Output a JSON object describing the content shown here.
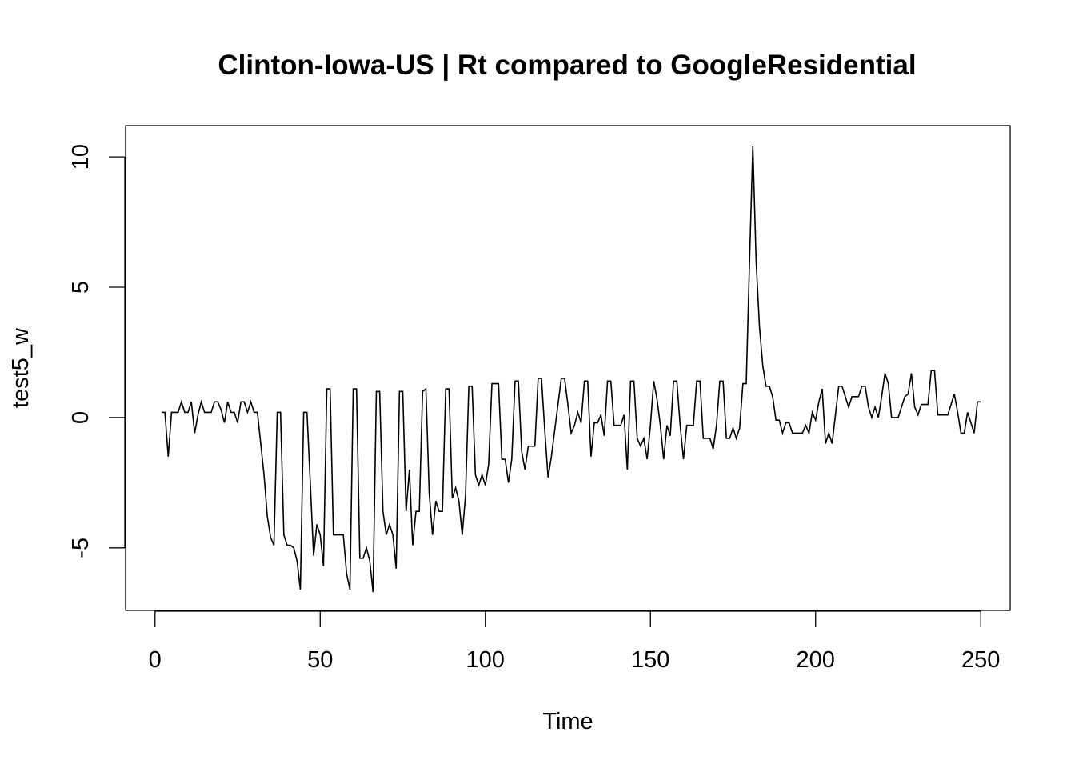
{
  "chart_data": {
    "type": "line",
    "title": "Clinton-Iowa-US | Rt compared to GoogleResidential",
    "xlabel": "Time",
    "ylabel": "test5_w",
    "xlim": [
      -8.9,
      258.9
    ],
    "ylim": [
      -7.4,
      11.2
    ],
    "x_ticks": [
      0,
      50,
      100,
      150,
      200,
      250
    ],
    "y_ticks": [
      -5,
      0,
      5,
      10
    ],
    "grid": false,
    "legend": "none",
    "line_color": "#000000",
    "series": [
      {
        "start_x": 2,
        "values": [
          0.2,
          0.2,
          -1.5,
          0.2,
          0.2,
          0.2,
          0.6,
          0.2,
          0.2,
          0.6,
          -0.6,
          0.1,
          0.6,
          0.2,
          0.2,
          0.2,
          0.6,
          0.6,
          0.3,
          -0.2,
          0.6,
          0.2,
          0.2,
          -0.2,
          0.6,
          0.6,
          0.2,
          0.6,
          0.2,
          0.2,
          -1.0,
          -2.2,
          -3.8,
          -4.6,
          -4.9,
          0.2,
          0.2,
          -4.5,
          -4.9,
          -4.9,
          -5.0,
          -5.5,
          -6.6,
          0.2,
          0.2,
          -2.5,
          -5.3,
          -4.1,
          -4.5,
          -5.7,
          1.1,
          1.1,
          -4.5,
          -4.5,
          -4.5,
          -4.5,
          -6.0,
          -6.6,
          1.1,
          1.1,
          -5.4,
          -5.4,
          -5.0,
          -5.5,
          -6.7,
          1.0,
          1.0,
          -3.6,
          -4.5,
          -4.1,
          -4.5,
          -5.8,
          1.0,
          1.0,
          -3.6,
          -2.0,
          -4.9,
          -3.6,
          -3.6,
          1.0,
          1.1,
          -2.9,
          -4.5,
          -3.2,
          -3.6,
          -3.6,
          1.1,
          1.1,
          -3.1,
          -2.7,
          -3.2,
          -4.5,
          -3.0,
          1.2,
          1.2,
          -2.2,
          -2.6,
          -2.2,
          -2.6,
          -1.8,
          1.3,
          1.3,
          1.3,
          -1.6,
          -1.6,
          -2.5,
          -1.6,
          1.4,
          1.4,
          -1.3,
          -2.0,
          -1.1,
          -1.1,
          -1.1,
          1.5,
          1.5,
          -0.5,
          -2.3,
          -1.5,
          -0.5,
          0.5,
          1.5,
          1.5,
          0.5,
          -0.6,
          -0.3,
          0.2,
          -0.2,
          1.4,
          1.4,
          -1.5,
          -0.2,
          -0.2,
          0.1,
          -0.7,
          1.4,
          1.4,
          -0.3,
          -0.3,
          -0.3,
          0.1,
          -2.0,
          1.4,
          1.4,
          -0.8,
          -1.1,
          -0.8,
          -1.6,
          -0.3,
          1.4,
          0.7,
          -0.3,
          -1.6,
          -0.3,
          -0.7,
          1.4,
          1.4,
          -0.3,
          -1.6,
          -0.3,
          -0.3,
          -0.3,
          1.4,
          1.4,
          -0.8,
          -0.8,
          -0.8,
          -1.2,
          -0.3,
          1.4,
          1.4,
          -0.8,
          -0.8,
          -0.4,
          -0.8,
          -0.4,
          1.3,
          1.3,
          6.0,
          10.4,
          6.0,
          3.5,
          2.0,
          1.2,
          1.2,
          0.8,
          -0.1,
          -0.1,
          -0.6,
          -0.2,
          -0.2,
          -0.6,
          -0.6,
          -0.6,
          -0.6,
          -0.3,
          -0.6,
          0.2,
          -0.1,
          0.6,
          1.1,
          -1.0,
          -0.6,
          -1.0,
          0.1,
          1.2,
          1.2,
          0.8,
          0.4,
          0.8,
          0.8,
          0.8,
          1.2,
          1.2,
          0.4,
          0.0,
          0.4,
          0.0,
          0.8,
          1.7,
          1.3,
          0.0,
          0.0,
          0.0,
          0.4,
          0.8,
          0.9,
          1.7,
          0.4,
          0.1,
          0.5,
          0.5,
          0.5,
          1.8,
          1.8,
          0.1,
          0.1,
          0.1,
          0.1,
          0.5,
          0.9,
          0.2,
          -0.6,
          -0.6,
          0.2,
          -0.2,
          -0.6,
          0.6,
          0.6
        ]
      }
    ]
  }
}
